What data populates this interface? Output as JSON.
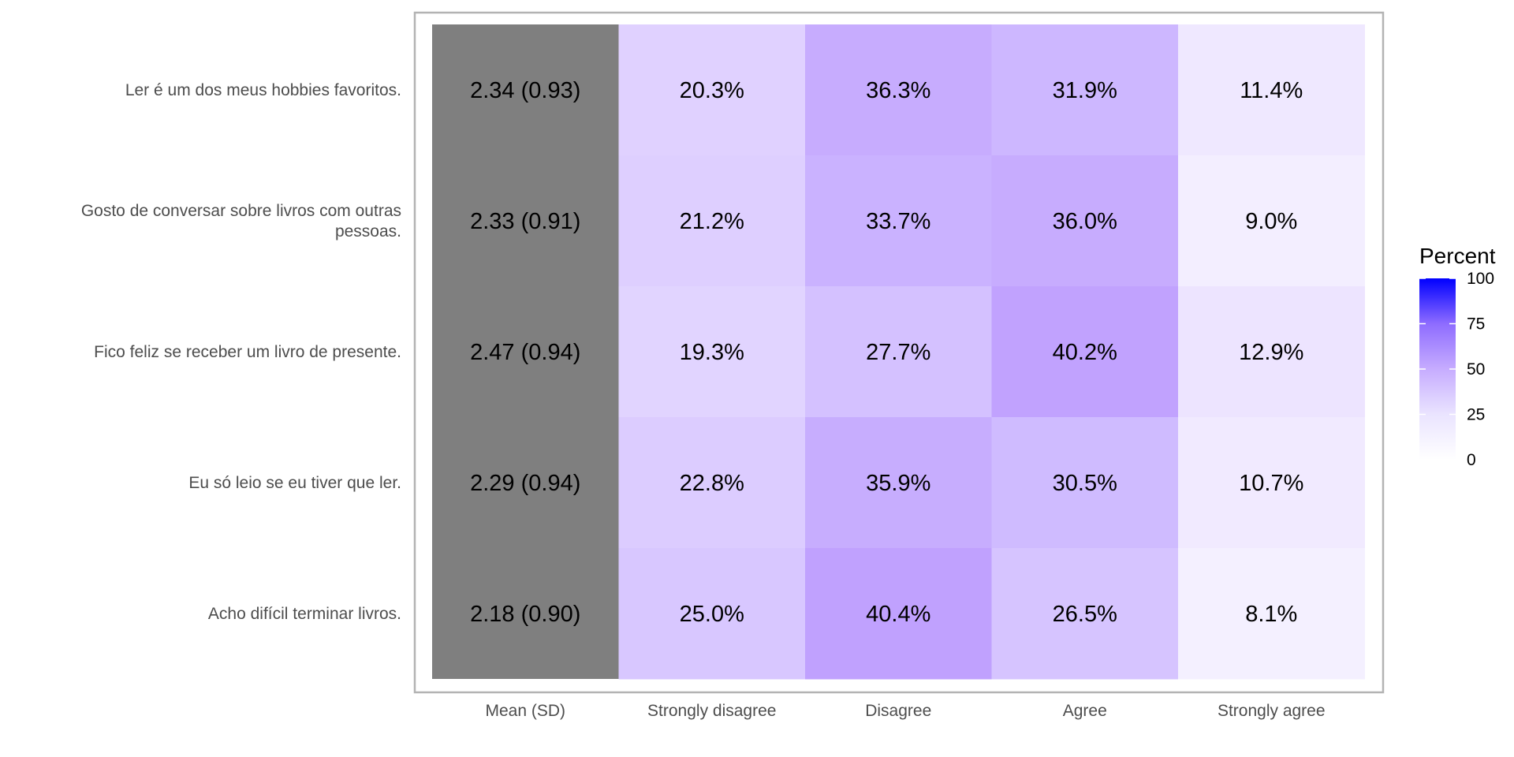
{
  "chart_data": {
    "type": "heatmap",
    "columns": [
      "Mean (SD)",
      "Strongly disagree",
      "Disagree",
      "Agree",
      "Strongly agree"
    ],
    "rows": [
      "Ler é um dos meus hobbies favoritos.",
      "Gosto de conversar sobre livros com outras pessoas.",
      "Fico feliz se receber um livro de presente.",
      "Eu só leio se eu tiver que ler.",
      "Acho difícil terminar livros."
    ],
    "row_label_lines": [
      [
        "Ler é um dos meus hobbies favoritos."
      ],
      [
        "Gosto de conversar sobre livros com outras",
        "pessoas."
      ],
      [
        "Fico feliz se receber um livro de presente."
      ],
      [
        "Eu só leio se eu tiver que ler."
      ],
      [
        "Acho difícil terminar livros."
      ]
    ],
    "mean_sd": [
      "2.34 (0.93)",
      "2.33 (0.91)",
      "2.47 (0.94)",
      "2.29 (0.94)",
      "2.18 (0.90)"
    ],
    "percent_values": [
      [
        20.3,
        36.3,
        31.9,
        11.4
      ],
      [
        21.2,
        33.7,
        36.0,
        9.0
      ],
      [
        19.3,
        27.7,
        40.2,
        12.9
      ],
      [
        22.8,
        35.9,
        30.5,
        10.7
      ],
      [
        25.0,
        40.4,
        26.5,
        8.1
      ]
    ],
    "legend": {
      "title": "Percent",
      "range": [
        0,
        100
      ],
      "ticks": [
        0,
        25,
        50,
        75,
        100
      ],
      "low_color": "#ffffff",
      "high_color": "#0000ff"
    },
    "mean_column_color": "#7f7f7f",
    "panel_border_color": "#b3b3b3"
  }
}
